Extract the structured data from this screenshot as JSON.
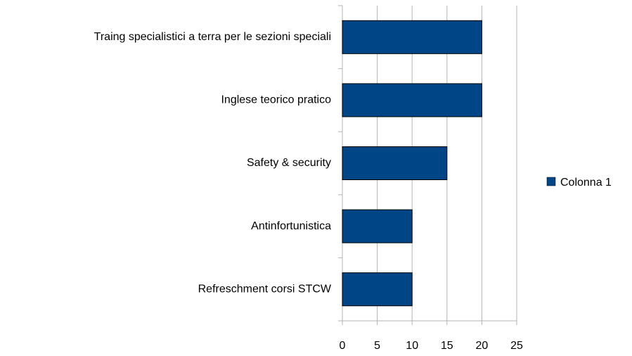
{
  "chart_data": {
    "type": "hbar",
    "categories": [
      "Traing specialistici a terra per le sezioni speciali",
      "Inglese teorico pratico",
      "Safety & security",
      "Antinfortunistica",
      "Refreschment corsi STCW"
    ],
    "series": [
      {
        "name": "Colonna 1",
        "color": "#004586",
        "values": [
          20,
          20,
          15,
          10,
          10
        ]
      }
    ],
    "xlim": [
      0,
      25
    ],
    "xticks": [
      0,
      5,
      10,
      15,
      20,
      25
    ],
    "grid": true,
    "legend": "right"
  }
}
